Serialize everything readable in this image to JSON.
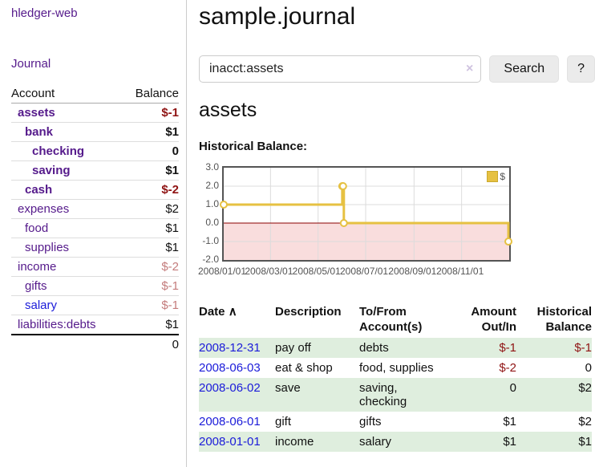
{
  "app": {
    "brand": "hledger-web",
    "nav_journal": "Journal"
  },
  "colors": {
    "brand_purple": "#551a8b",
    "link_blue": "#1b1bd9",
    "negative_strong": "#8f1313",
    "negative_soft": "#c47c7c",
    "row_stripe_green": "#dfeede",
    "chart_gold": "#e6c142",
    "chart_negative_fill": "#f9dddd",
    "chart_zero_line": "#8b0000"
  },
  "sidebar": {
    "header": {
      "account": "Account",
      "balance": "Balance"
    },
    "accounts": [
      {
        "name": "assets",
        "balance": "$-1",
        "level": 0,
        "bold": true,
        "neg": "strong"
      },
      {
        "name": "bank",
        "balance": "$1",
        "level": 1,
        "bold": true
      },
      {
        "name": "checking",
        "balance": "0",
        "level": 2,
        "bold": true
      },
      {
        "name": "saving",
        "balance": "$1",
        "level": 2,
        "bold": true
      },
      {
        "name": "cash",
        "balance": "$-2",
        "level": 1,
        "bold": true,
        "neg": "strong"
      },
      {
        "name": "expenses",
        "balance": "$2",
        "level": 0
      },
      {
        "name": "food",
        "balance": "$1",
        "level": 1
      },
      {
        "name": "supplies",
        "balance": "$1",
        "level": 1
      },
      {
        "name": "income",
        "balance": "$-2",
        "level": 0,
        "neg": "soft"
      },
      {
        "name": "gifts",
        "balance": "$-1",
        "level": 1,
        "neg": "soft"
      },
      {
        "name": "salary",
        "balance": "$-1",
        "level": 1,
        "neg": "soft",
        "blue": true
      },
      {
        "name": "liabilities:debts",
        "balance": "$1",
        "level": 0
      }
    ],
    "total": "0"
  },
  "header": {
    "title": "sample.journal"
  },
  "search": {
    "value": "inacct:assets",
    "clear_icon": "×",
    "button": "Search",
    "help_button": "?"
  },
  "account_page": {
    "title": "assets",
    "chart_label": "Historical Balance:"
  },
  "chart_data": {
    "type": "line",
    "title": "Historical Balance:",
    "xlabel": "",
    "ylabel": "",
    "grid": true,
    "step": true,
    "x_range": [
      0,
      366
    ],
    "y_range": [
      -2,
      3
    ],
    "y_ticks": [
      3.0,
      2.0,
      1.0,
      0.0,
      -1.0,
      -2.0
    ],
    "x_ticks": [
      {
        "day": 0,
        "label": "2008/01/01"
      },
      {
        "day": 60,
        "label": "2008/03/01"
      },
      {
        "day": 121,
        "label": "2008/05/01"
      },
      {
        "day": 182,
        "label": "2008/07/01"
      },
      {
        "day": 244,
        "label": "2008/09/01"
      },
      {
        "day": 305,
        "label": "2008/11/01"
      },
      {
        "day": 366,
        "label": ""
      }
    ],
    "series": [
      {
        "name": "$",
        "color": "#e6c142",
        "points": [
          {
            "date": "2008-01-01",
            "day": 0,
            "value": 1
          },
          {
            "date": "2008-06-01",
            "day": 152,
            "value": 2
          },
          {
            "date": "2008-06-02",
            "day": 153,
            "value": 2
          },
          {
            "date": "2008-06-03",
            "day": 154,
            "value": 0
          },
          {
            "date": "2008-12-31",
            "day": 365,
            "value": -1
          }
        ]
      }
    ],
    "zero_line_color": "#8b0000",
    "negative_fill": "#f9dddd",
    "grid_color": "#dcdcdc",
    "border_color": "#545454",
    "legend": {
      "label": "$",
      "position": "top-right"
    }
  },
  "register": {
    "sort_icon": "∧",
    "columns": [
      "Date",
      "Description",
      "To/From Account(s)",
      "Amount Out/In",
      "Historical Balance"
    ],
    "rows": [
      {
        "date": "2008-12-31",
        "description": "pay off",
        "accounts": "debts",
        "amount": "$-1",
        "amount_neg": true,
        "balance": "$-1",
        "balance_neg": true
      },
      {
        "date": "2008-06-03",
        "description": "eat & shop",
        "accounts": "food, supplies",
        "amount": "$-2",
        "amount_neg": true,
        "balance": "0",
        "balance_neg": false
      },
      {
        "date": "2008-06-02",
        "description": "save",
        "accounts": "saving, checking",
        "amount": "0",
        "amount_neg": false,
        "balance": "$2",
        "balance_neg": false
      },
      {
        "date": "2008-06-01",
        "description": "gift",
        "accounts": "gifts",
        "amount": "$1",
        "amount_neg": false,
        "balance": "$2",
        "balance_neg": false
      },
      {
        "date": "2008-01-01",
        "description": "income",
        "accounts": "salary",
        "amount": "$1",
        "amount_neg": false,
        "balance": "$1",
        "balance_neg": false
      }
    ]
  }
}
